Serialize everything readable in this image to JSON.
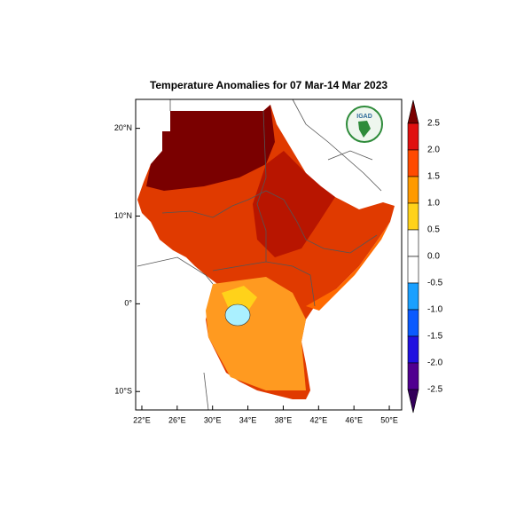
{
  "map": {
    "title": "Temperature Anomalies for 07 Mar-14 Mar 2023",
    "logo_text": "IGAD",
    "xlim": [
      21.3,
      51.4
    ],
    "ylim": [
      -12.1,
      23.3
    ],
    "xticks": [
      {
        "value": 22,
        "label": "22°E"
      },
      {
        "value": 26,
        "label": "26°E"
      },
      {
        "value": 30,
        "label": "30°E"
      },
      {
        "value": 34,
        "label": "34°E"
      },
      {
        "value": 38,
        "label": "38°E"
      },
      {
        "value": 42,
        "label": "42°E"
      },
      {
        "value": 46,
        "label": "46°E"
      },
      {
        "value": 50,
        "label": "50°E"
      }
    ],
    "yticks": [
      {
        "value": 20,
        "label": "20°N"
      },
      {
        "value": 10,
        "label": "10°N"
      },
      {
        "value": 0,
        "label": "0°"
      },
      {
        "value": -10,
        "label": "10°S"
      }
    ],
    "colorbar": {
      "levels": [
        2.5,
        {
          "value": 2,
          "label": "2.0"
        },
        1.5,
        {
          "value": 1,
          "label": "1.0"
        },
        0.5,
        {
          "value": 0,
          "label": "0.0"
        },
        -0.5,
        {
          "value": -1,
          "label": "-1.0"
        },
        -1.5,
        {
          "value": -2,
          "label": "-2.0"
        },
        -2.5
      ],
      "colors": [
        "#7a0000",
        "#e01010",
        "#ff4a00",
        "#ff9a00",
        "#ffd21a",
        "#ffffff",
        "#ffffff",
        "#1aa0ff",
        "#0a5aff",
        "#2010e0",
        "#500090",
        "#33005a"
      ]
    }
  }
}
